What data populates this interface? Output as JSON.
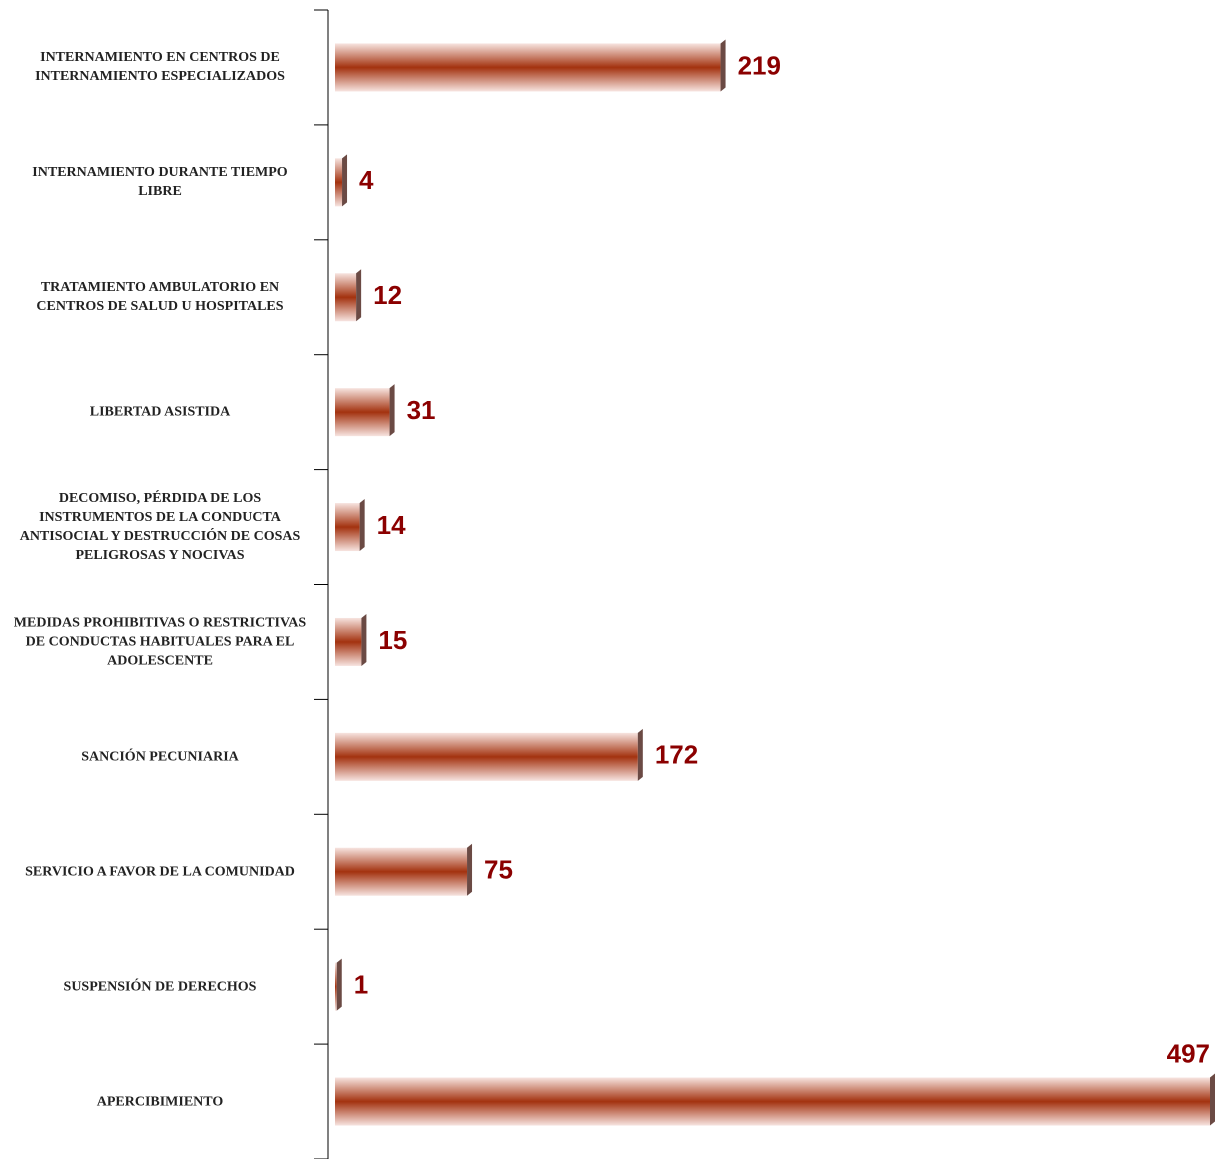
{
  "chart_data": {
    "type": "bar",
    "orientation": "horizontal",
    "categories": [
      "INTERNAMIENTO EN CENTROS DE INTERNAMIENTO ESPECIALIZADOS",
      "INTERNAMIENTO DURANTE TIEMPO LIBRE",
      "TRATAMIENTO AMBULATORIO EN CENTROS DE SALUD U HOSPITALES",
      "LIBERTAD ASISTIDA",
      "DECOMISO, PÉRDIDA DE LOS INSTRUMENTOS DE LA CONDUCTA ANTISOCIAL Y DESTRUCCIÓN DE COSAS PELIGROSAS Y NOCIVAS",
      "MEDIDAS PROHIBITIVAS O RESTRICTIVAS DE CONDUCTAS HABITUALES PARA EL ADOLESCENTE",
      "SANCIÓN PECUNIARIA",
      "SERVICIO A FAVOR DE LA COMUNIDAD",
      "SUSPENSIÓN DE DERECHOS",
      "APERCIBIMIENTO"
    ],
    "values": [
      219,
      4,
      12,
      31,
      14,
      15,
      172,
      75,
      1,
      497
    ],
    "color": "#a3320f",
    "label_color": "#8b0000"
  }
}
